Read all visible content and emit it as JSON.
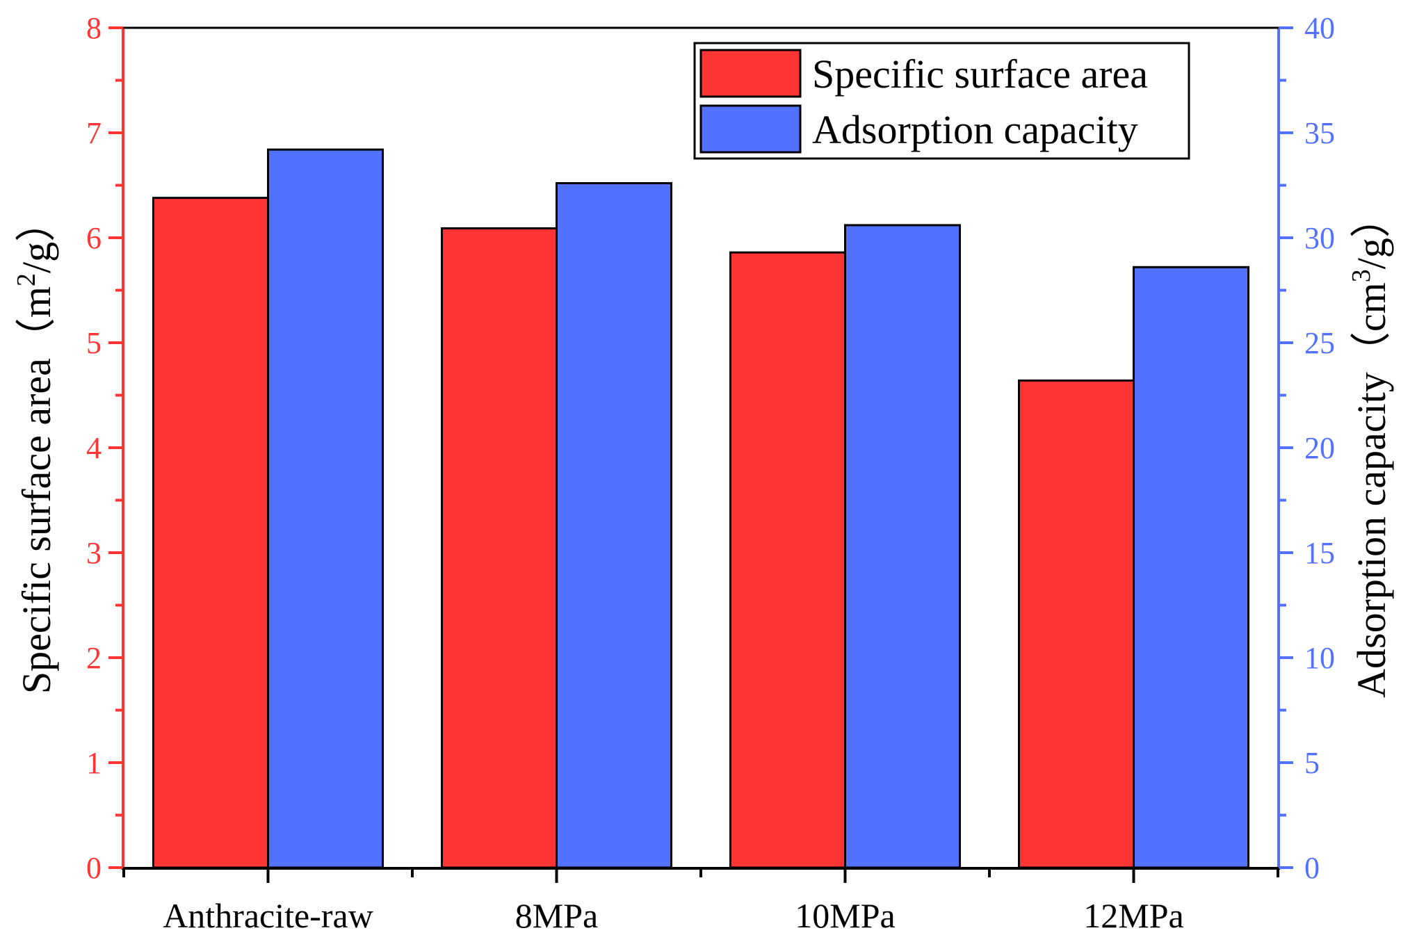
{
  "chart_data": {
    "type": "bar",
    "categories": [
      "Anthracite-raw",
      "8MPa",
      "10MPa",
      "12MPa"
    ],
    "series": [
      {
        "name": "Specific surface area",
        "axis": "left",
        "color": "#ff3535",
        "values": [
          6.38,
          6.09,
          5.86,
          4.64
        ]
      },
      {
        "name": "Adsorption capacity",
        "axis": "right",
        "color": "#5271ff",
        "values": [
          34.2,
          32.6,
          30.6,
          28.6
        ]
      }
    ],
    "y_left": {
      "label_main": "Specific surface area（m",
      "label_sup": "2",
      "label_end": "/g）",
      "lim": [
        0,
        8
      ],
      "ticks": [
        "0",
        "1",
        "2",
        "3",
        "4",
        "5",
        "6",
        "7",
        "8"
      ],
      "color": "#ff3535"
    },
    "y_right": {
      "label_main": "Adsorption capacity（cm",
      "label_sup": "3",
      "label_end": "/g）",
      "lim": [
        0,
        40
      ],
      "ticks": [
        "0",
        "5",
        "10",
        "15",
        "20",
        "25",
        "30",
        "35",
        "40"
      ],
      "color": "#5271ff"
    },
    "legend_position": "top-right",
    "grid": false
  }
}
